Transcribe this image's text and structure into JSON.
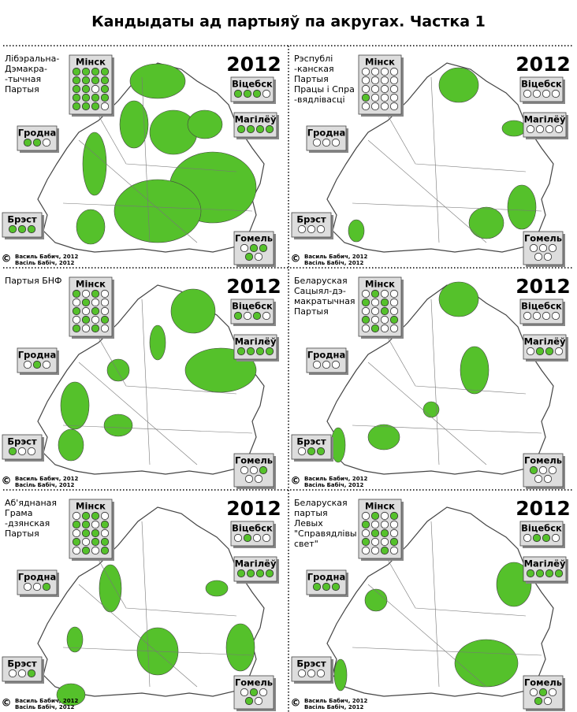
{
  "title": "Кандыдаты ад партыяў па акругах. Частка 1",
  "colors": {
    "on": "#55c12b",
    "off": "#ffffff"
  },
  "panels": [
    {
      "party": [
        "Лібэральна-",
        "Дэмакра-",
        "-тычная",
        "Партыя"
      ],
      "year": "2012",
      "copyright": "©",
      "credit": [
        "Василь Бабич, 2012",
        "Васіль Бабіч, 2012"
      ],
      "regions": [
        {
          "name": "Мінск",
          "dots": [
            1,
            1,
            1,
            1,
            1,
            1,
            1,
            1,
            1,
            1,
            0,
            1,
            1,
            1,
            1,
            1,
            1,
            1,
            1,
            0
          ]
        },
        {
          "name": "Віцебск",
          "dots": [
            1,
            1,
            1,
            0
          ]
        },
        {
          "name": "Магілёў",
          "dots": [
            1,
            1,
            1,
            1
          ]
        },
        {
          "name": "Гродна",
          "dots": [
            1,
            1,
            0
          ]
        },
        {
          "name": "Брэст",
          "dots": [
            1,
            1,
            1
          ]
        },
        {
          "name": "Гомель",
          "dots": [
            0,
            1,
            1,
            1,
            0
          ]
        }
      ]
    },
    {
      "party": [
        "Рэспублі",
        "-канская",
        "Партыя",
        "Працы і Спра",
        "-вядлівасці"
      ],
      "year": "2012",
      "copyright": "©",
      "credit": [
        "Василь Бабич, 2012",
        "Васіль Бабіч, 2012"
      ],
      "regions": [
        {
          "name": "Мінск",
          "dots": [
            0,
            0,
            0,
            0,
            0,
            0,
            0,
            0,
            0,
            0,
            0,
            0,
            1,
            0,
            0,
            0,
            0,
            0,
            0,
            0
          ]
        },
        {
          "name": "Віцебск",
          "dots": [
            0,
            0,
            0,
            0
          ]
        },
        {
          "name": "Магілёў",
          "dots": [
            0,
            0,
            0,
            0
          ]
        },
        {
          "name": "Гродна",
          "dots": [
            0,
            0,
            0
          ]
        },
        {
          "name": "Брэст",
          "dots": [
            0,
            0,
            0
          ]
        },
        {
          "name": "Гомель",
          "dots": [
            0,
            0,
            0,
            0,
            0
          ]
        }
      ]
    },
    {
      "party": [
        "Партыя БНФ"
      ],
      "year": "2012",
      "copyright": "©",
      "credit": [
        "Василь Бабич, 2012",
        "Васіль Бабіч, 2012"
      ],
      "regions": [
        {
          "name": "Мінск",
          "dots": [
            1,
            0,
            1,
            0,
            0,
            1,
            0,
            0,
            1,
            0,
            1,
            0,
            0,
            1,
            0,
            1,
            1,
            0,
            1,
            0
          ]
        },
        {
          "name": "Віцебск",
          "dots": [
            1,
            0,
            1,
            0
          ]
        },
        {
          "name": "Магілёў",
          "dots": [
            1,
            1,
            1,
            1
          ]
        },
        {
          "name": "Гродна",
          "dots": [
            0,
            1,
            0
          ]
        },
        {
          "name": "Брэст",
          "dots": [
            1,
            0,
            0
          ]
        },
        {
          "name": "Гомель",
          "dots": [
            0,
            0,
            1,
            0,
            0
          ]
        }
      ]
    },
    {
      "party": [
        "Беларуская",
        "Сацыял-дэ-",
        "макратычная",
        "Партыя"
      ],
      "year": "2012",
      "copyright": "©",
      "credit": [
        "Василь Бабич, 2012",
        "Васіль Бабіч, 2012"
      ],
      "regions": [
        {
          "name": "Мінск",
          "dots": [
            0,
            1,
            0,
            0,
            1,
            0,
            1,
            0,
            0,
            0,
            1,
            0,
            1,
            0,
            0,
            1,
            0,
            1,
            0,
            0
          ]
        },
        {
          "name": "Віцебск",
          "dots": [
            0,
            0,
            0,
            0
          ]
        },
        {
          "name": "Магілёў",
          "dots": [
            0,
            1,
            1,
            0
          ]
        },
        {
          "name": "Гродна",
          "dots": [
            0,
            0,
            0
          ]
        },
        {
          "name": "Брэст",
          "dots": [
            0,
            1,
            1
          ]
        },
        {
          "name": "Гомель",
          "dots": [
            1,
            0,
            0,
            0,
            0
          ]
        }
      ]
    },
    {
      "party": [
        "Аб'яднаная",
        "Грама",
        "-дзянская",
        "Партыя"
      ],
      "year": "2012",
      "copyright": "©",
      "credit": [
        "Василь Бабич, 2012",
        "Васіль Бабіч, 2012"
      ],
      "regions": [
        {
          "name": "Мінск",
          "dots": [
            0,
            1,
            1,
            0,
            1,
            1,
            0,
            1,
            0,
            1,
            1,
            0,
            1,
            0,
            1,
            1,
            0,
            1,
            0,
            1
          ]
        },
        {
          "name": "Віцебск",
          "dots": [
            0,
            1,
            0,
            0
          ]
        },
        {
          "name": "Магілёў",
          "dots": [
            1,
            1,
            1,
            1
          ]
        },
        {
          "name": "Гродна",
          "dots": [
            0,
            0,
            1
          ]
        },
        {
          "name": "Брэст",
          "dots": [
            0,
            0,
            1
          ]
        },
        {
          "name": "Гомель",
          "dots": [
            0,
            1,
            0,
            1,
            0
          ]
        }
      ]
    },
    {
      "party": [
        "Беларуская",
        "партыя",
        "Левых",
        "\"Справядлівы",
        "свет\""
      ],
      "year": "2012",
      "copyright": "©",
      "credit": [
        "Василь Бабич, 2012",
        "Васіль Бабіч, 2012"
      ],
      "regions": [
        {
          "name": "Мінск",
          "dots": [
            0,
            1,
            0,
            1,
            1,
            0,
            0,
            0,
            0,
            1,
            1,
            0,
            1,
            0,
            0,
            1,
            0,
            0,
            1,
            0
          ]
        },
        {
          "name": "Віцебск",
          "dots": [
            0,
            1,
            1,
            0
          ]
        },
        {
          "name": "Магілёў",
          "dots": [
            1,
            1,
            1,
            1
          ]
        },
        {
          "name": "Гродна",
          "dots": [
            1,
            1,
            1
          ]
        },
        {
          "name": "Брэст",
          "dots": [
            0,
            0,
            0
          ]
        },
        {
          "name": "Гомель",
          "dots": [
            0,
            1,
            0,
            1,
            0
          ]
        }
      ]
    }
  ]
}
